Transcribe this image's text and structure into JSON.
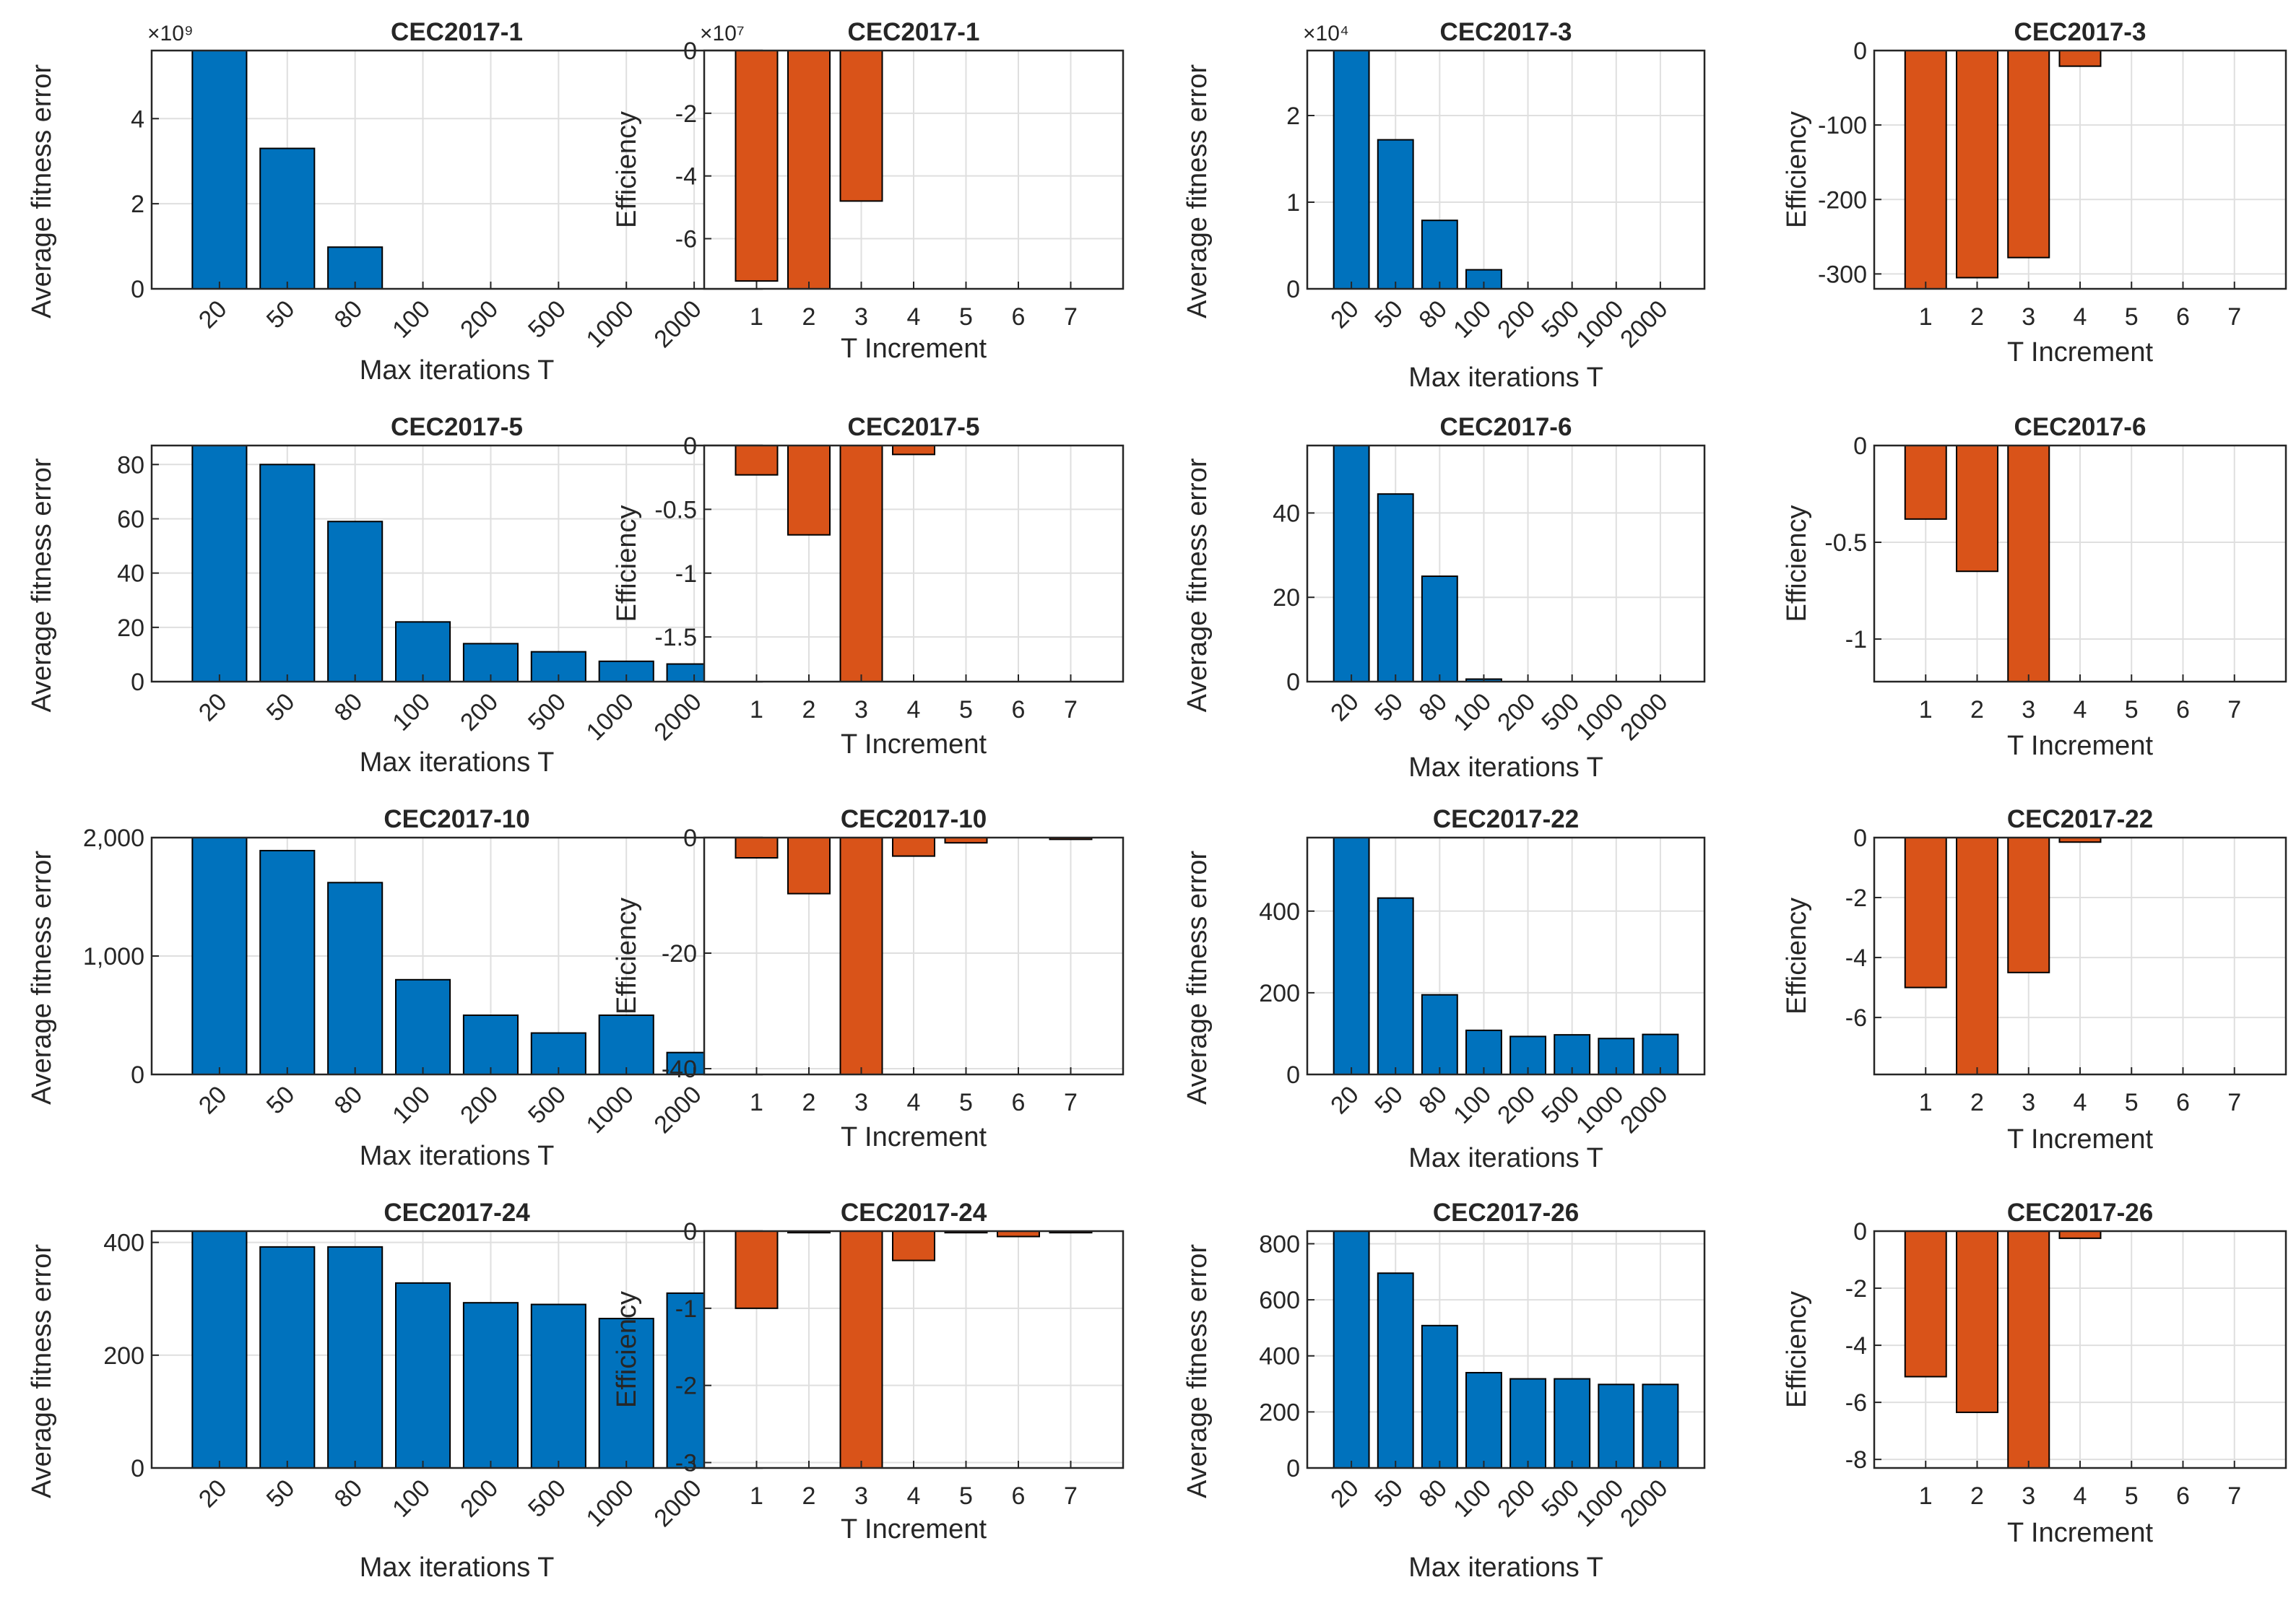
{
  "colors": {
    "blue": "#0072BD",
    "orange": "#D95319",
    "axis": "#262626",
    "grid": "#DFDFDF"
  },
  "chart_data": [
    {
      "type": "bar",
      "title": "CEC2017-1",
      "ylabel": "Average fitness error",
      "xlabel": "Max iterations T",
      "categories": [
        "20",
        "50",
        "80",
        "100",
        "200",
        "500",
        "1000",
        "2000"
      ],
      "values": [
        5.6,
        3.3,
        0.98,
        0,
        0,
        0,
        0,
        0
      ],
      "ylim": [
        0,
        5.6
      ],
      "yticks": [
        0,
        2,
        4
      ],
      "ytick_labels": [
        "0",
        "2",
        "4"
      ],
      "exponent": "×10⁹"
    },
    {
      "type": "bar",
      "title": "CEC2017-1",
      "ylabel": "Efficiency",
      "xlabel": "T Increment",
      "categories": [
        "1",
        "2",
        "3",
        "4",
        "5",
        "6",
        "7"
      ],
      "values": [
        -7.35,
        -7.6,
        -4.8,
        0,
        0,
        0,
        0
      ],
      "ylim": [
        -7.6,
        0
      ],
      "yticks": [
        -6,
        -4,
        -2,
        0
      ],
      "ytick_labels": [
        "-6",
        "-4",
        "-2",
        "0"
      ],
      "exponent": "×10⁷"
    },
    {
      "type": "bar",
      "title": "CEC2017-3",
      "ylabel": "Average fitness error",
      "xlabel": "Max iterations T",
      "categories": [
        "20",
        "50",
        "80",
        "100",
        "200",
        "500",
        "1000",
        "2000"
      ],
      "values": [
        2.75,
        1.72,
        0.79,
        0.22,
        0,
        0,
        0,
        0
      ],
      "ylim": [
        0,
        2.75
      ],
      "yticks": [
        0,
        1,
        2
      ],
      "ytick_labels": [
        "0",
        "1",
        "2"
      ],
      "exponent": "×10⁴"
    },
    {
      "type": "bar",
      "title": "CEC2017-3",
      "ylabel": "Efficiency",
      "xlabel": "T Increment",
      "categories": [
        "1",
        "2",
        "3",
        "4",
        "5",
        "6",
        "7"
      ],
      "values": [
        -320,
        -305,
        -278,
        -21,
        0,
        0,
        0
      ],
      "ylim": [
        -320,
        0
      ],
      "yticks": [
        -300,
        -200,
        -100,
        0
      ],
      "ytick_labels": [
        "-300",
        "-200",
        "-100",
        "0"
      ]
    },
    {
      "type": "bar",
      "title": "CEC2017-5",
      "ylabel": "Average fitness error",
      "xlabel": "Max iterations T",
      "categories": [
        "20",
        "50",
        "80",
        "100",
        "200",
        "500",
        "1000",
        "2000"
      ],
      "values": [
        87,
        80,
        59,
        22,
        14,
        11,
        7.5,
        6.5
      ],
      "ylim": [
        0,
        87
      ],
      "yticks": [
        0,
        20,
        40,
        60,
        80
      ],
      "ytick_labels": [
        "0",
        "20",
        "40",
        "60",
        "80"
      ]
    },
    {
      "type": "bar",
      "title": "CEC2017-5",
      "ylabel": "Efficiency",
      "xlabel": "T Increment",
      "categories": [
        "1",
        "2",
        "3",
        "4",
        "5",
        "6",
        "7"
      ],
      "values": [
        -0.23,
        -0.7,
        -1.85,
        -0.07,
        0,
        0,
        0
      ],
      "ylim": [
        -1.85,
        0
      ],
      "yticks": [
        -1.5,
        -1,
        -0.5,
        0
      ],
      "ytick_labels": [
        "-1.5",
        "-1",
        "-0.5",
        "0"
      ]
    },
    {
      "type": "bar",
      "title": "CEC2017-6",
      "ylabel": "Average fitness error",
      "xlabel": "Max iterations T",
      "categories": [
        "20",
        "50",
        "80",
        "100",
        "200",
        "500",
        "1000",
        "2000"
      ],
      "values": [
        56,
        44.5,
        25,
        0.6,
        0,
        0,
        0,
        0
      ],
      "ylim": [
        0,
        56
      ],
      "yticks": [
        0,
        20,
        40
      ],
      "ytick_labels": [
        "0",
        "20",
        "40"
      ]
    },
    {
      "type": "bar",
      "title": "CEC2017-6",
      "ylabel": "Efficiency",
      "xlabel": "T Increment",
      "categories": [
        "1",
        "2",
        "3",
        "4",
        "5",
        "6",
        "7"
      ],
      "values": [
        -0.38,
        -0.65,
        -1.22,
        0,
        0,
        0,
        0
      ],
      "ylim": [
        -1.22,
        0
      ],
      "yticks": [
        -1,
        -0.5,
        0
      ],
      "ytick_labels": [
        "-1",
        "-0.5",
        "0"
      ]
    },
    {
      "type": "bar",
      "title": "CEC2017-10",
      "ylabel": "Average fitness error",
      "xlabel": "Max iterations T",
      "categories": [
        "20",
        "50",
        "80",
        "100",
        "200",
        "500",
        "1000",
        "2000"
      ],
      "values": [
        2000,
        1890,
        1620,
        800,
        500,
        350,
        500,
        185
      ],
      "ylim": [
        0,
        2000
      ],
      "yticks": [
        0,
        1000,
        2000
      ],
      "ytick_labels": [
        "0",
        "1,000",
        "2,000"
      ]
    },
    {
      "type": "bar",
      "title": "CEC2017-10",
      "ylabel": "Efficiency",
      "xlabel": "T Increment",
      "categories": [
        "1",
        "2",
        "3",
        "4",
        "5",
        "6",
        "7"
      ],
      "values": [
        -3.5,
        -9.7,
        -41,
        -3.2,
        -0.9,
        0,
        -0.3
      ],
      "ylim": [
        -41,
        0
      ],
      "yticks": [
        -40,
        -20,
        0
      ],
      "ytick_labels": [
        "-40",
        "-20",
        "0"
      ]
    },
    {
      "type": "bar",
      "title": "CEC2017-22",
      "ylabel": "Average fitness error",
      "xlabel": "Max iterations T",
      "categories": [
        "20",
        "50",
        "80",
        "100",
        "200",
        "500",
        "1000",
        "2000"
      ],
      "values": [
        580,
        432,
        195,
        108,
        93,
        97,
        88,
        98
      ],
      "ylim": [
        0,
        580
      ],
      "yticks": [
        0,
        200,
        400
      ],
      "ytick_labels": [
        "0",
        "200",
        "400"
      ]
    },
    {
      "type": "bar",
      "title": "CEC2017-22",
      "ylabel": "Efficiency",
      "xlabel": "T Increment",
      "categories": [
        "1",
        "2",
        "3",
        "4",
        "5",
        "6",
        "7"
      ],
      "values": [
        -5,
        -7.9,
        -4.5,
        -0.15,
        0,
        0,
        0
      ],
      "ylim": [
        -7.9,
        0
      ],
      "yticks": [
        -6,
        -4,
        -2,
        0
      ],
      "ytick_labels": [
        "-6",
        "-4",
        "-2",
        "0"
      ]
    },
    {
      "type": "bar",
      "title": "CEC2017-24",
      "ylabel": "Average fitness error",
      "xlabel": "Max iterations T",
      "categories": [
        "20",
        "50",
        "80",
        "100",
        "200",
        "500",
        "1000",
        "2000"
      ],
      "values": [
        420,
        392,
        392,
        328,
        293,
        290,
        265,
        310
      ],
      "ylim": [
        0,
        420
      ],
      "yticks": [
        0,
        200,
        400
      ],
      "ytick_labels": [
        "0",
        "200",
        "400"
      ]
    },
    {
      "type": "bar",
      "title": "CEC2017-24",
      "ylabel": "Efficiency",
      "xlabel": "T Increment",
      "categories": [
        "1",
        "2",
        "3",
        "4",
        "5",
        "6",
        "7"
      ],
      "values": [
        -1,
        -0.02,
        -3.07,
        -0.38,
        -0.02,
        -0.07,
        -0.02
      ],
      "ylim": [
        -3.07,
        0
      ],
      "yticks": [
        -3,
        -2,
        -1,
        0
      ],
      "ytick_labels": [
        "-3",
        "-2",
        "-1",
        "0"
      ]
    },
    {
      "type": "bar",
      "title": "CEC2017-26",
      "ylabel": "Average fitness error",
      "xlabel": "Max iterations T",
      "categories": [
        "20",
        "50",
        "80",
        "100",
        "200",
        "500",
        "1000",
        "2000"
      ],
      "values": [
        845,
        695,
        508,
        340,
        318,
        318,
        298,
        298
      ],
      "ylim": [
        0,
        845
      ],
      "yticks": [
        0,
        200,
        400,
        600,
        800
      ],
      "ytick_labels": [
        "0",
        "200",
        "400",
        "600",
        "800"
      ]
    },
    {
      "type": "bar",
      "title": "CEC2017-26",
      "ylabel": "Efficiency",
      "xlabel": "T Increment",
      "categories": [
        "1",
        "2",
        "3",
        "4",
        "5",
        "6",
        "7"
      ],
      "values": [
        -5.1,
        -6.35,
        -8.3,
        -0.25,
        0,
        0,
        0
      ],
      "ylim": [
        -8.3,
        0
      ],
      "yticks": [
        -8,
        -6,
        -4,
        -2,
        0
      ],
      "ytick_labels": [
        "-8",
        "-6",
        "-4",
        "-2",
        "0"
      ]
    }
  ]
}
